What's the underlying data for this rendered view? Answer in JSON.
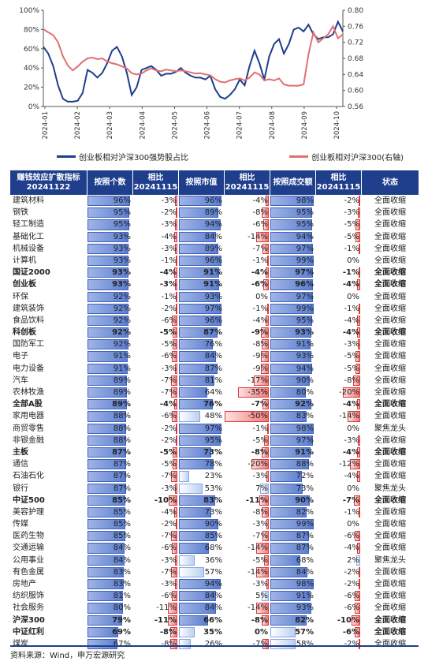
{
  "chart_data": {
    "type": "line",
    "x_ticks": [
      "2024-01",
      "2024-02",
      "2024-03",
      "2024-04",
      "2024-05",
      "2024-06",
      "2024-07",
      "2024-08",
      "2024-09",
      "2024-10"
    ],
    "y_left_ticks": [
      "0%",
      "20%",
      "40%",
      "60%",
      "80%",
      "100%"
    ],
    "y_right_ticks": [
      "0.56",
      "0.60",
      "0.64",
      "0.68",
      "0.72",
      "0.76",
      "0.80"
    ],
    "y_left_range": [
      0,
      100
    ],
    "y_right_range": [
      0.56,
      0.8
    ],
    "series": [
      {
        "name": "创业板相对沪深300强势股占比",
        "axis": "left",
        "color": "#1f3e8c",
        "values": [
          62,
          55,
          42,
          22,
          8,
          5,
          5,
          6,
          14,
          38,
          35,
          30,
          35,
          45,
          58,
          62,
          52,
          35,
          12,
          20,
          38,
          40,
          42,
          38,
          32,
          34,
          34,
          36,
          40,
          35,
          32,
          30,
          30,
          28,
          32,
          18,
          10,
          8,
          12,
          18,
          28,
          22,
          42,
          58,
          45,
          28,
          52,
          65,
          70,
          55,
          65,
          80,
          82,
          78,
          85,
          75,
          70,
          72,
          72,
          75,
          88,
          78
        ]
      },
      {
        "name": "创业板相对沪深300(右轴)",
        "axis": "right",
        "color": "#e07070",
        "values": [
          0.753,
          0.745,
          0.738,
          0.72,
          0.685,
          0.662,
          0.65,
          0.66,
          0.672,
          0.68,
          0.682,
          0.678,
          0.68,
          0.672,
          0.668,
          0.665,
          0.66,
          0.655,
          0.643,
          0.64,
          0.642,
          0.65,
          0.655,
          0.65,
          0.648,
          0.652,
          0.65,
          0.648,
          0.65,
          0.648,
          0.645,
          0.642,
          0.643,
          0.64,
          0.638,
          0.628,
          0.622,
          0.62,
          0.625,
          0.628,
          0.63,
          0.625,
          0.632,
          0.645,
          0.64,
          0.625,
          0.628,
          0.625,
          0.63,
          0.615,
          0.612,
          0.612,
          0.612,
          0.615,
          0.69,
          0.745,
          0.72,
          0.73,
          0.74,
          0.76,
          0.73,
          0.74
        ]
      }
    ]
  },
  "table": {
    "headers": [
      "赚钱效应扩散指标\n20241122",
      "按照个数",
      "相比\n20241115",
      "按照市值",
      "相比\n20241115",
      "按照成交额",
      "相比\n20241115",
      "状态"
    ],
    "rows": [
      {
        "name": "建筑材料",
        "bold": false,
        "v": [
          "96%",
          "-3%",
          "96%",
          "-4%",
          "98%",
          "-2%"
        ],
        "n": [
          96,
          -3,
          96,
          -4,
          98,
          -2
        ],
        "status": "全面收缩"
      },
      {
        "name": "钢铁",
        "bold": false,
        "v": [
          "95%",
          "-2%",
          "89%",
          "-8%",
          "95%",
          "-3%"
        ],
        "n": [
          95,
          -2,
          89,
          -8,
          95,
          -3
        ],
        "status": "全面收缩"
      },
      {
        "name": "轻工制造",
        "bold": false,
        "v": [
          "95%",
          "-3%",
          "94%",
          "-6%",
          "95%",
          "-5%"
        ],
        "n": [
          95,
          -3,
          94,
          -6,
          95,
          -5
        ],
        "status": "全面收缩"
      },
      {
        "name": "基础化工",
        "bold": false,
        "v": [
          "93%",
          "-4%",
          "84%",
          "-14%",
          "94%",
          "-5%"
        ],
        "n": [
          93,
          -4,
          84,
          -14,
          94,
          -5
        ],
        "status": "全面收缩"
      },
      {
        "name": "机械设备",
        "bold": false,
        "v": [
          "93%",
          "-3%",
          "89%",
          "-7%",
          "97%",
          "-1%"
        ],
        "n": [
          93,
          -3,
          89,
          -7,
          97,
          -1
        ],
        "status": "全面收缩"
      },
      {
        "name": "计算机",
        "bold": false,
        "v": [
          "93%",
          "-1%",
          "96%",
          "-1%",
          "99%",
          "0%"
        ],
        "n": [
          93,
          -1,
          96,
          -1,
          99,
          0
        ],
        "status": "全面收缩"
      },
      {
        "name": "国证2000",
        "bold": true,
        "v": [
          "93%",
          "-4%",
          "91%",
          "-4%",
          "97%",
          "-1%"
        ],
        "n": [
          93,
          -4,
          91,
          -4,
          97,
          -1
        ],
        "status": "全面收缩"
      },
      {
        "name": "创业板",
        "bold": true,
        "v": [
          "93%",
          "-3%",
          "91%",
          "-6%",
          "96%",
          "-4%"
        ],
        "n": [
          93,
          -3,
          91,
          -6,
          96,
          -4
        ],
        "status": "全面收缩"
      },
      {
        "name": "环保",
        "bold": false,
        "v": [
          "92%",
          "-1%",
          "93%",
          "0%",
          "97%",
          "0%"
        ],
        "n": [
          92,
          -1,
          93,
          0,
          97,
          0
        ],
        "status": "全面收缩"
      },
      {
        "name": "建筑装饰",
        "bold": false,
        "v": [
          "92%",
          "-2%",
          "97%",
          "-1%",
          "99%",
          "-1%"
        ],
        "n": [
          92,
          -2,
          97,
          -1,
          99,
          -1
        ],
        "status": "全面收缩"
      },
      {
        "name": "食品饮料",
        "bold": false,
        "v": [
          "92%",
          "-6%",
          "96%",
          "-4%",
          "95%",
          "-4%"
        ],
        "n": [
          92,
          -6,
          96,
          -4,
          95,
          -4
        ],
        "status": "全面收缩"
      },
      {
        "name": "科创板",
        "bold": true,
        "v": [
          "92%",
          "-5%",
          "87%",
          "-9%",
          "93%",
          "-4%"
        ],
        "n": [
          92,
          -5,
          87,
          -9,
          93,
          -4
        ],
        "status": "全面收缩"
      },
      {
        "name": "国防军工",
        "bold": false,
        "v": [
          "92%",
          "-5%",
          "76%",
          "-8%",
          "91%",
          "-3%"
        ],
        "n": [
          92,
          -5,
          76,
          -8,
          91,
          -3
        ],
        "status": "全面收缩"
      },
      {
        "name": "电子",
        "bold": false,
        "v": [
          "91%",
          "-6%",
          "84%",
          "-9%",
          "93%",
          "-5%"
        ],
        "n": [
          91,
          -6,
          84,
          -9,
          93,
          -5
        ],
        "status": "全面收缩"
      },
      {
        "name": "电力设备",
        "bold": false,
        "v": [
          "91%",
          "-3%",
          "87%",
          "-9%",
          "94%",
          "-5%"
        ],
        "n": [
          91,
          -3,
          87,
          -9,
          94,
          -5
        ],
        "status": "全面收缩"
      },
      {
        "name": "汽车",
        "bold": false,
        "v": [
          "89%",
          "-7%",
          "81%",
          "-17%",
          "90%",
          "-8%"
        ],
        "n": [
          89,
          -7,
          81,
          -17,
          90,
          -8
        ],
        "status": "全面收缩"
      },
      {
        "name": "农林牧渔",
        "bold": false,
        "v": [
          "89%",
          "-7%",
          "64%",
          "-35%",
          "80%",
          "-20%"
        ],
        "n": [
          89,
          -7,
          64,
          -35,
          80,
          -20
        ],
        "status": "全面收缩"
      },
      {
        "name": "全部A股",
        "bold": true,
        "v": [
          "89%",
          "-4%",
          "76%",
          "-7%",
          "92%",
          "-4%"
        ],
        "n": [
          89,
          -4,
          76,
          -7,
          92,
          -4
        ],
        "status": "全面收缩"
      },
      {
        "name": "家用电器",
        "bold": false,
        "v": [
          "88%",
          "-6%",
          "48%",
          "-50%",
          "83%",
          "-14%"
        ],
        "n": [
          88,
          -6,
          48,
          -50,
          83,
          -14
        ],
        "status": "全面收缩"
      },
      {
        "name": "商贸零售",
        "bold": false,
        "v": [
          "88%",
          "-2%",
          "97%",
          "-1%",
          "98%",
          "0%"
        ],
        "n": [
          88,
          -2,
          97,
          -1,
          98,
          0
        ],
        "status": "聚焦龙头"
      },
      {
        "name": "非银金融",
        "bold": false,
        "v": [
          "88%",
          "-2%",
          "95%",
          "-5%",
          "97%",
          "-3%"
        ],
        "n": [
          88,
          -2,
          95,
          -5,
          97,
          -3
        ],
        "status": "全面收缩"
      },
      {
        "name": "主板",
        "bold": true,
        "v": [
          "87%",
          "-5%",
          "73%",
          "-8%",
          "91%",
          "-4%"
        ],
        "n": [
          87,
          -5,
          73,
          -8,
          91,
          -4
        ],
        "status": "全面收缩"
      },
      {
        "name": "通信",
        "bold": false,
        "v": [
          "87%",
          "-5%",
          "78%",
          "-20%",
          "88%",
          "-12%"
        ],
        "n": [
          87,
          -5,
          78,
          -20,
          88,
          -12
        ],
        "status": "全面收缩"
      },
      {
        "name": "石油石化",
        "bold": false,
        "v": [
          "87%",
          "-7%",
          "23%",
          "-3%",
          "72%",
          "-4%"
        ],
        "n": [
          87,
          -7,
          23,
          -3,
          72,
          -4
        ],
        "status": "全面收缩"
      },
      {
        "name": "银行",
        "bold": false,
        "v": [
          "87%",
          "-3%",
          "53%",
          "7%",
          "73%",
          "0%"
        ],
        "n": [
          87,
          -3,
          53,
          7,
          73,
          0
        ],
        "status": "聚焦龙头"
      },
      {
        "name": "中证500",
        "bold": true,
        "v": [
          "85%",
          "-10%",
          "83%",
          "-11%",
          "90%",
          "-7%"
        ],
        "n": [
          85,
          -10,
          83,
          -11,
          90,
          -7
        ],
        "status": "全面收缩"
      },
      {
        "name": "美容护理",
        "bold": false,
        "v": [
          "85%",
          "-4%",
          "73%",
          "-8%",
          "82%",
          "-1%"
        ],
        "n": [
          85,
          -4,
          73,
          -8,
          82,
          -1
        ],
        "status": "全面收缩"
      },
      {
        "name": "传媒",
        "bold": false,
        "v": [
          "85%",
          "-2%",
          "90%",
          "-3%",
          "99%",
          "0%"
        ],
        "n": [
          85,
          -2,
          90,
          -3,
          99,
          0
        ],
        "status": "全面收缩"
      },
      {
        "name": "医药生物",
        "bold": false,
        "v": [
          "85%",
          "-7%",
          "85%",
          "-7%",
          "87%",
          "-6%"
        ],
        "n": [
          85,
          -7,
          85,
          -7,
          87,
          -6
        ],
        "status": "全面收缩"
      },
      {
        "name": "交通运输",
        "bold": false,
        "v": [
          "84%",
          "-6%",
          "68%",
          "-14%",
          "87%",
          "-4%"
        ],
        "n": [
          84,
          -6,
          68,
          -14,
          87,
          -4
        ],
        "status": "全面收缩"
      },
      {
        "name": "公用事业",
        "bold": false,
        "v": [
          "84%",
          "-3%",
          "36%",
          "-5%",
          "68%",
          "2%"
        ],
        "n": [
          84,
          -3,
          36,
          -5,
          68,
          2
        ],
        "status": "聚焦龙头"
      },
      {
        "name": "有色金属",
        "bold": false,
        "v": [
          "83%",
          "-7%",
          "57%",
          "-14%",
          "84%",
          "-2%"
        ],
        "n": [
          83,
          -7,
          57,
          -14,
          84,
          -2
        ],
        "status": "全面收缩"
      },
      {
        "name": "房地产",
        "bold": false,
        "v": [
          "83%",
          "-3%",
          "94%",
          "-3%",
          "98%",
          "-2%"
        ],
        "n": [
          83,
          -3,
          94,
          -3,
          98,
          -2
        ],
        "status": "全面收缩"
      },
      {
        "name": "纺织服饰",
        "bold": false,
        "v": [
          "81%",
          "-6%",
          "84%",
          "5%",
          "91%",
          "-6%"
        ],
        "n": [
          81,
          -6,
          84,
          5,
          91,
          -6
        ],
        "status": "全面收缩"
      },
      {
        "name": "社会服务",
        "bold": false,
        "v": [
          "80%",
          "-11%",
          "84%",
          "-14%",
          "93%",
          "-6%"
        ],
        "n": [
          80,
          -11,
          84,
          -14,
          93,
          -6
        ],
        "status": "全面收缩"
      },
      {
        "name": "沪深300",
        "bold": true,
        "v": [
          "79%",
          "-11%",
          "66%",
          "-8%",
          "82%",
          "-10%"
        ],
        "n": [
          79,
          -11,
          66,
          -8,
          82,
          -10
        ],
        "status": "全面收缩"
      },
      {
        "name": "中证红利",
        "bold": true,
        "v": [
          "69%",
          "-8%",
          "35%",
          "0%",
          "57%",
          "-6%"
        ],
        "n": [
          69,
          -8,
          35,
          0,
          57,
          -6
        ],
        "status": "全面收缩"
      },
      {
        "name": "煤炭",
        "bold": false,
        "v": [
          "67%",
          "-8%",
          "26%",
          "-7%",
          "58%",
          "-2%"
        ],
        "n": [
          67,
          -8,
          26,
          -7,
          58,
          -2
        ],
        "status": "全面收缩"
      }
    ]
  },
  "footer": "资料来源：Wind，申万宏源研究"
}
